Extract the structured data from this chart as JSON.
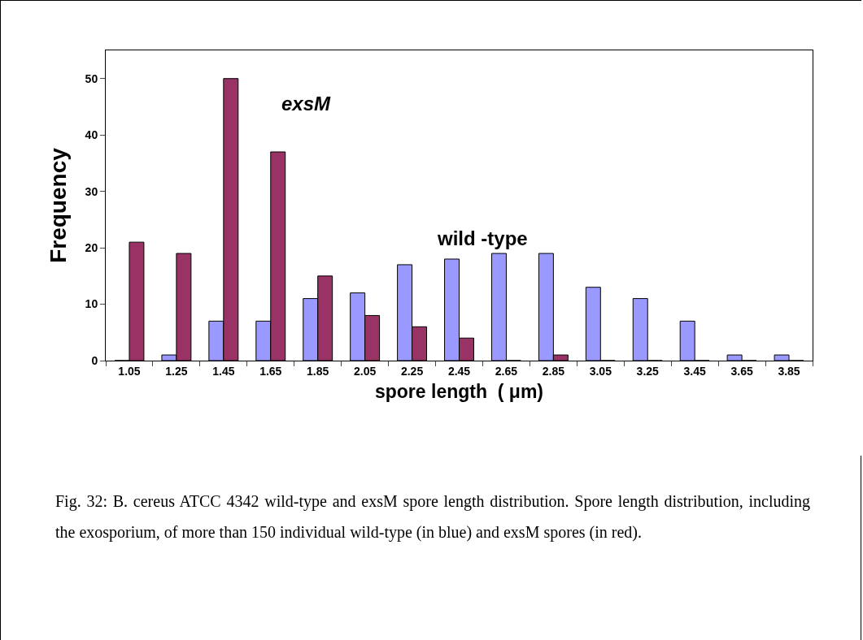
{
  "chart_data": {
    "type": "bar",
    "xlabel": "spore length  ( μm)",
    "ylabel": "Frequency",
    "categories": [
      "1.05",
      "1.25",
      "1.45",
      "1.65",
      "1.85",
      "2.05",
      "2.25",
      "2.45",
      "2.65",
      "2.85",
      "3.05",
      "3.25",
      "3.45",
      "3.65",
      "3.85"
    ],
    "series": [
      {
        "name": "wild -type",
        "color": "#9999ff",
        "values": [
          0,
          1,
          7,
          7,
          11,
          12,
          17,
          18,
          19,
          19,
          13,
          11,
          7,
          1,
          1
        ]
      },
      {
        "name": "exsM",
        "color": "#993366",
        "values": [
          21,
          19,
          50,
          37,
          15,
          8,
          6,
          4,
          0,
          1,
          0,
          0,
          0,
          0,
          0
        ]
      }
    ],
    "ylim": [
      0,
      55
    ],
    "yticks": [
      0,
      10,
      20,
      30,
      40,
      50
    ],
    "grid": false,
    "legend": false,
    "annotations": [
      "Fig. 32: B. cereus ATCC 4342 wild-type and exsM spore length distribution. Spore length distribution, including the exosporium, of more than 150 individual wild-type (in blue) and exsM spores (in red)."
    ]
  }
}
